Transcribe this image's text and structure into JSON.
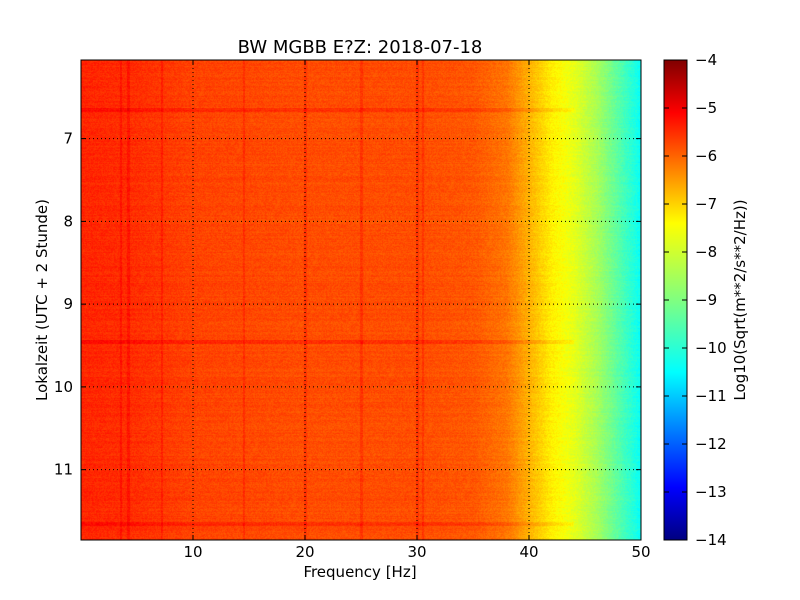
{
  "chart_data": {
    "type": "heatmap",
    "title": "BW MGBB E?Z: 2018-07-18",
    "xlabel": "Frequency [Hz]",
    "ylabel": "Lokalzeit (UTC + 2 Stunde)",
    "xlim": [
      0,
      50
    ],
    "ylim": [
      11.85,
      6.05
    ],
    "x_ticks": [
      10,
      20,
      30,
      40,
      50
    ],
    "y_ticks": [
      7,
      8,
      9,
      10,
      11
    ],
    "grid": true,
    "colorscale": "jet",
    "colorbar": {
      "label": "Log10(Sqrt(m**2/s**2/Hz))",
      "range": [
        -14,
        -4
      ],
      "ticks": [
        -4,
        -5,
        -6,
        -7,
        -8,
        -9,
        -10,
        -11,
        -12,
        -13,
        -14
      ]
    },
    "spectrum_profile": {
      "frequency_hz": [
        0,
        5,
        10,
        20,
        30,
        35,
        38,
        40,
        42,
        44,
        46,
        48,
        50
      ],
      "log10_amplitude": [
        -5.6,
        -5.7,
        -5.9,
        -6.0,
        -6.0,
        -6.1,
        -6.4,
        -7.0,
        -7.6,
        -8.0,
        -8.6,
        -9.4,
        -10.2
      ]
    },
    "vertical_lines_hz": [
      3.5,
      4.2,
      7.2,
      14.5,
      20.0,
      25.0,
      30.0,
      30.5
    ],
    "horizontal_bands_hours": [
      6.65,
      9.45,
      11.65
    ]
  }
}
